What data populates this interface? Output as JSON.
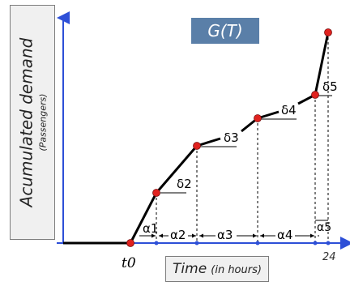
{
  "title": "G(T)",
  "y_axis": {
    "main": "Acumulated demand",
    "sub": "(Passengers)"
  },
  "x_axis": {
    "main": "Time",
    "sub": "(in hours)"
  },
  "tick_labels": {
    "t0": "t0",
    "end": "24"
  },
  "deltas": [
    "δ2",
    "δ3",
    "δ4",
    "δ5"
  ],
  "alphas": [
    "α1",
    "α2",
    "α3",
    "α4",
    "α5"
  ],
  "colors": {
    "curve": "#000000",
    "points": "#e0221f",
    "axis": "#2d4fd7",
    "title_bg": "#5a7fa8"
  }
}
